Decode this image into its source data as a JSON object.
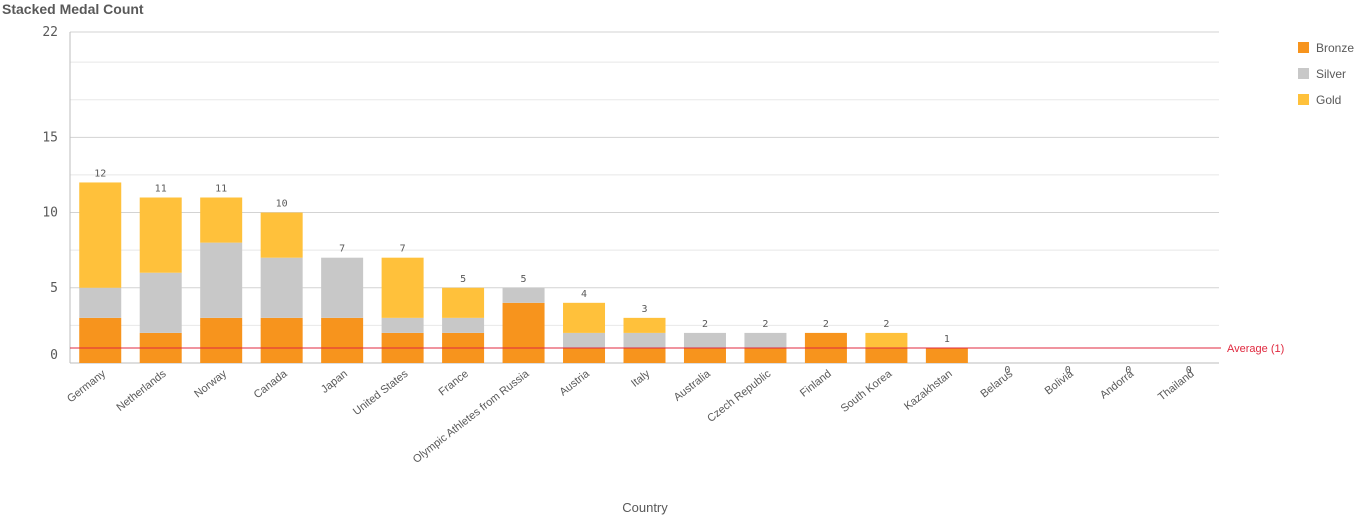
{
  "chart_data": {
    "type": "bar",
    "stacked": true,
    "title": "Stacked Medal Count",
    "xlabel": "Country",
    "ylabel": "",
    "ylim": [
      0,
      22
    ],
    "yticks": [
      0,
      5,
      10,
      15,
      22
    ],
    "grid": true,
    "legend_position": "top-right",
    "categories": [
      "Germany",
      "Netherlands",
      "Norway",
      "Canada",
      "Japan",
      "United States",
      "France",
      "Olympic Athletes from Russia",
      "Austria",
      "Italy",
      "Australia",
      "Czech Republic",
      "Finland",
      "South Korea",
      "Kazakhstan",
      "Belarus",
      "Bolivia",
      "Andorra",
      "Thailand"
    ],
    "series": [
      {
        "name": "Bronze",
        "color": "#f7941d",
        "values": [
          3,
          2,
          3,
          3,
          3,
          2,
          2,
          4,
          1,
          1,
          1,
          1,
          2,
          1,
          1,
          0,
          0,
          0,
          0
        ]
      },
      {
        "name": "Silver",
        "color": "#c8c8c8",
        "values": [
          2,
          4,
          5,
          4,
          4,
          1,
          1,
          1,
          1,
          1,
          1,
          1,
          0,
          0,
          0,
          0,
          0,
          0,
          0
        ]
      },
      {
        "name": "Gold",
        "color": "#ffc13b",
        "values": [
          7,
          5,
          3,
          3,
          0,
          4,
          2,
          0,
          2,
          1,
          0,
          0,
          0,
          1,
          0,
          0,
          0,
          0,
          0
        ]
      }
    ],
    "totals": [
      12,
      11,
      11,
      10,
      7,
      7,
      5,
      5,
      4,
      3,
      2,
      2,
      2,
      2,
      1,
      0,
      0,
      0,
      0
    ],
    "reference_line": {
      "label": "Average (1)",
      "value": 1,
      "color": "#e0293f"
    }
  }
}
